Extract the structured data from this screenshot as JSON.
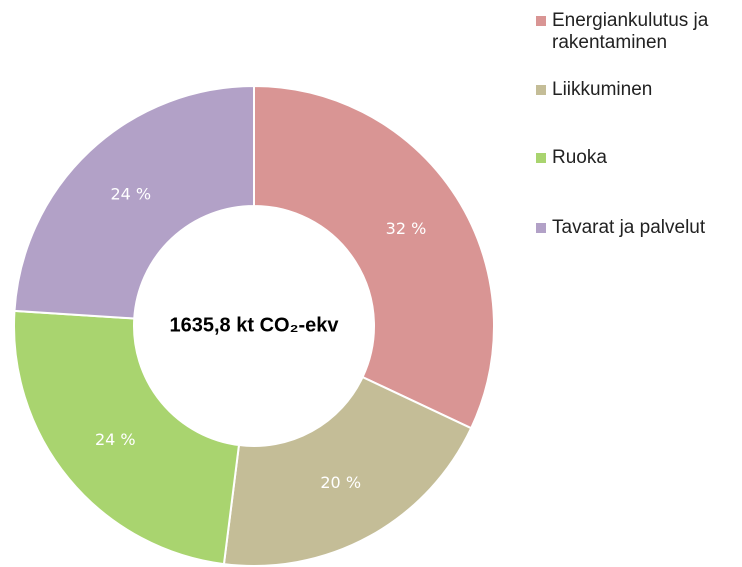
{
  "chart_data": {
    "type": "donut",
    "center_label": "1635,8 kt CO₂-ekv",
    "categories": [
      "Energiankulutus ja rakentaminen",
      "Liikkuminen",
      "Ruoka",
      "Tavarat ja palvelut"
    ],
    "values": [
      32,
      20,
      24,
      24
    ],
    "value_labels": [
      "32 %",
      "20 %",
      "24 %",
      "24 %"
    ],
    "colors": [
      "#d99594",
      "#c4bd97",
      "#a9d46f",
      "#b2a1c7"
    ],
    "legend": "right"
  }
}
